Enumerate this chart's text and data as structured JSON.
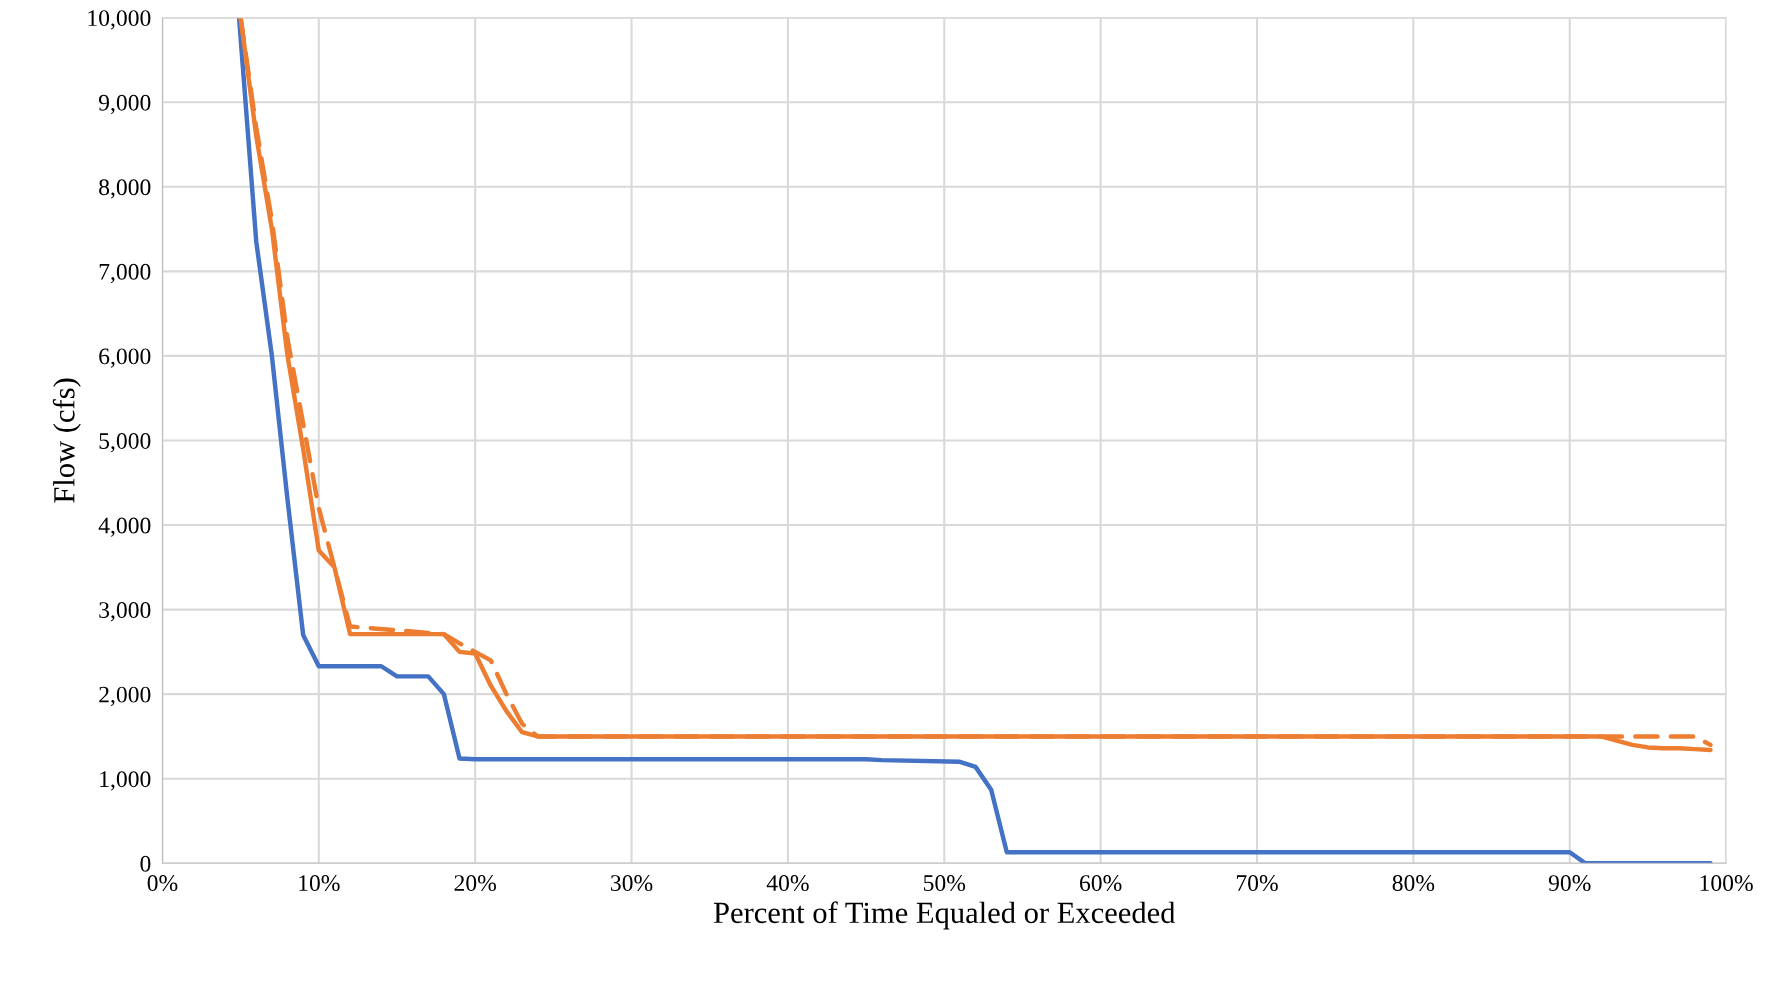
{
  "chart_data": {
    "type": "line",
    "xlabel": "Percent of Time Equaled or Exceeded",
    "ylabel": "Flow (cfs)",
    "xlim": [
      0,
      100
    ],
    "xticks": [
      {
        "value": 0,
        "label": "0%"
      },
      {
        "value": 10,
        "label": "10%"
      },
      {
        "value": 20,
        "label": "20%"
      },
      {
        "value": 30,
        "label": "30%"
      },
      {
        "value": 40,
        "label": "40%"
      },
      {
        "value": 50,
        "label": "50%"
      },
      {
        "value": 60,
        "label": "60%"
      },
      {
        "value": 70,
        "label": "70%"
      },
      {
        "value": 80,
        "label": "80%"
      },
      {
        "value": 90,
        "label": "90%"
      },
      {
        "value": 100,
        "label": "100%"
      }
    ],
    "ylim": [
      0,
      10000
    ],
    "yticks": [
      {
        "value": 0,
        "label": "0"
      },
      {
        "value": 1000,
        "label": "1,000"
      },
      {
        "value": 2000,
        "label": "2,000"
      },
      {
        "value": 3000,
        "label": "3,000"
      },
      {
        "value": 4000,
        "label": "4,000"
      },
      {
        "value": 5000,
        "label": "5,000"
      },
      {
        "value": 6000,
        "label": "6,000"
      },
      {
        "value": 7000,
        "label": "7,000"
      },
      {
        "value": 8000,
        "label": "8,000"
      },
      {
        "value": 9000,
        "label": "9,000"
      },
      {
        "value": 10000,
        "label": "10,000"
      }
    ],
    "grid": true,
    "legend": false,
    "marker": "none",
    "series": [
      {
        "color": "#4472c4",
        "line_style": "solid",
        "x": [
          4.9,
          6,
          7,
          8,
          9,
          10,
          14,
          15,
          17,
          18,
          19,
          20,
          45,
          46,
          51,
          52,
          53,
          54,
          90,
          91,
          99
        ],
        "values": [
          10000,
          7350,
          6000,
          4300,
          2700,
          2330,
          2330,
          2210,
          2210,
          2000,
          1240,
          1230,
          1230,
          1220,
          1200,
          1140,
          870,
          130,
          130,
          0,
          0
        ]
      },
      {
        "color": "#ed7d31",
        "line_style": "dashed",
        "x": [
          5,
          6,
          7,
          8,
          9,
          10,
          11,
          12,
          18,
          19,
          20,
          21,
          22,
          23,
          24,
          92,
          93,
          98,
          99
        ],
        "values": [
          10000,
          8700,
          7600,
          6200,
          5200,
          4200,
          3500,
          2800,
          2710,
          2600,
          2500,
          2400,
          2000,
          1650,
          1500,
          1500,
          1500,
          1500,
          1400
        ]
      },
      {
        "color": "#ed7d31",
        "line_style": "solid",
        "x": [
          5,
          6,
          7,
          8,
          9,
          10,
          11,
          12,
          18,
          19,
          20,
          21,
          22,
          23,
          24,
          92,
          93,
          94,
          95,
          96,
          97,
          98,
          99
        ],
        "values": [
          10000,
          8600,
          7500,
          6000,
          4900,
          3700,
          3500,
          2710,
          2710,
          2500,
          2480,
          2100,
          1800,
          1550,
          1500,
          1500,
          1450,
          1400,
          1370,
          1360,
          1360,
          1350,
          1340
        ]
      }
    ]
  }
}
